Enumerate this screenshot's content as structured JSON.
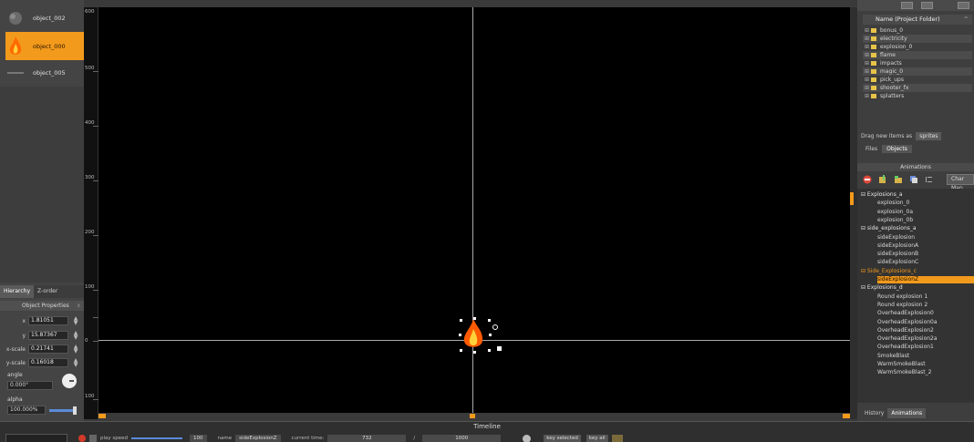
{
  "objects": [
    {
      "name": "object_002"
    },
    {
      "name": "object_000",
      "selected": true
    },
    {
      "name": "object_005"
    }
  ],
  "left_tabs": [
    "Hierarchy",
    "Z-order"
  ],
  "props": {
    "title": "Object Properties",
    "close": "x",
    "x_label": "x",
    "x_value": "1.81051",
    "y_label": "y",
    "y_value": "15.87367",
    "xscale_label": "x-scale",
    "xscale_value": "0.21741",
    "yscale_label": "y-scale",
    "yscale_value": "0.16018",
    "angle_label": "angle",
    "angle_value": "0.000°",
    "alpha_label": "alpha",
    "alpha_value": "100.000%"
  },
  "ruler": [
    "600",
    "500",
    "400",
    "300",
    "200",
    "100",
    "0",
    "100"
  ],
  "right": {
    "tree_header": "Name   (Project Folder)",
    "folders": [
      "bonus_0",
      "electricity",
      "explosion_0",
      "flame",
      "impacts",
      "magic_0",
      "pick_ups",
      "shooter_fx",
      "splatters"
    ],
    "drag_label": "Drag new items as",
    "drag_value": "sprites",
    "file_tabs": [
      "Files",
      "Objects"
    ],
    "animations_title": "Animations",
    "char_map": "Char Map"
  },
  "animations": [
    {
      "text": "⊟ Explosions_a",
      "level": 0
    },
    {
      "text": "explosion_0",
      "level": 1
    },
    {
      "text": "explosion_0a",
      "level": 1
    },
    {
      "text": "explosion_0b",
      "level": 1
    },
    {
      "text": "⊟ side_explosions_a",
      "level": 0
    },
    {
      "text": "sideExplosion",
      "level": 1
    },
    {
      "text": "sideExplosionA",
      "level": 1
    },
    {
      "text": "sideExplosionB",
      "level": 1
    },
    {
      "text": "sideExplosionC",
      "level": 1
    },
    {
      "text": "⊟ Side_Explosions_c",
      "level": 0
    },
    {
      "text": "sideExplosionZ",
      "level": 1
    },
    {
      "text": "⊟ Explosions_d",
      "level": 0
    },
    {
      "text": "Round explosion 1",
      "level": 1
    },
    {
      "text": "Round explosion 2",
      "level": 1
    },
    {
      "text": "OverheadExplosion0",
      "level": 1
    },
    {
      "text": "OverheadExplosion0a",
      "level": 1
    },
    {
      "text": "OverheadExplosion2",
      "level": 1
    },
    {
      "text": "OverheadExplosion2a",
      "level": 1
    },
    {
      "text": "OverheadExplosion1",
      "level": 1
    },
    {
      "text": "SmokeBlast",
      "level": 1
    },
    {
      "text": "WarmSmokeBlast",
      "level": 1
    },
    {
      "text": "WarmSmokeBlast_2",
      "level": 1
    }
  ],
  "right_tabs": [
    "History",
    "Animations"
  ],
  "timeline": {
    "title": "Timeline",
    "play_speed_label": "play speed",
    "play_speed_value": "100",
    "name_label": "name",
    "name_value": "sideExplosionZ",
    "current_time_label": "current time:",
    "current_time_value": "732",
    "slash": "/",
    "total_time_value": "1000",
    "key_selected": "key selected",
    "key_all": "key all"
  }
}
